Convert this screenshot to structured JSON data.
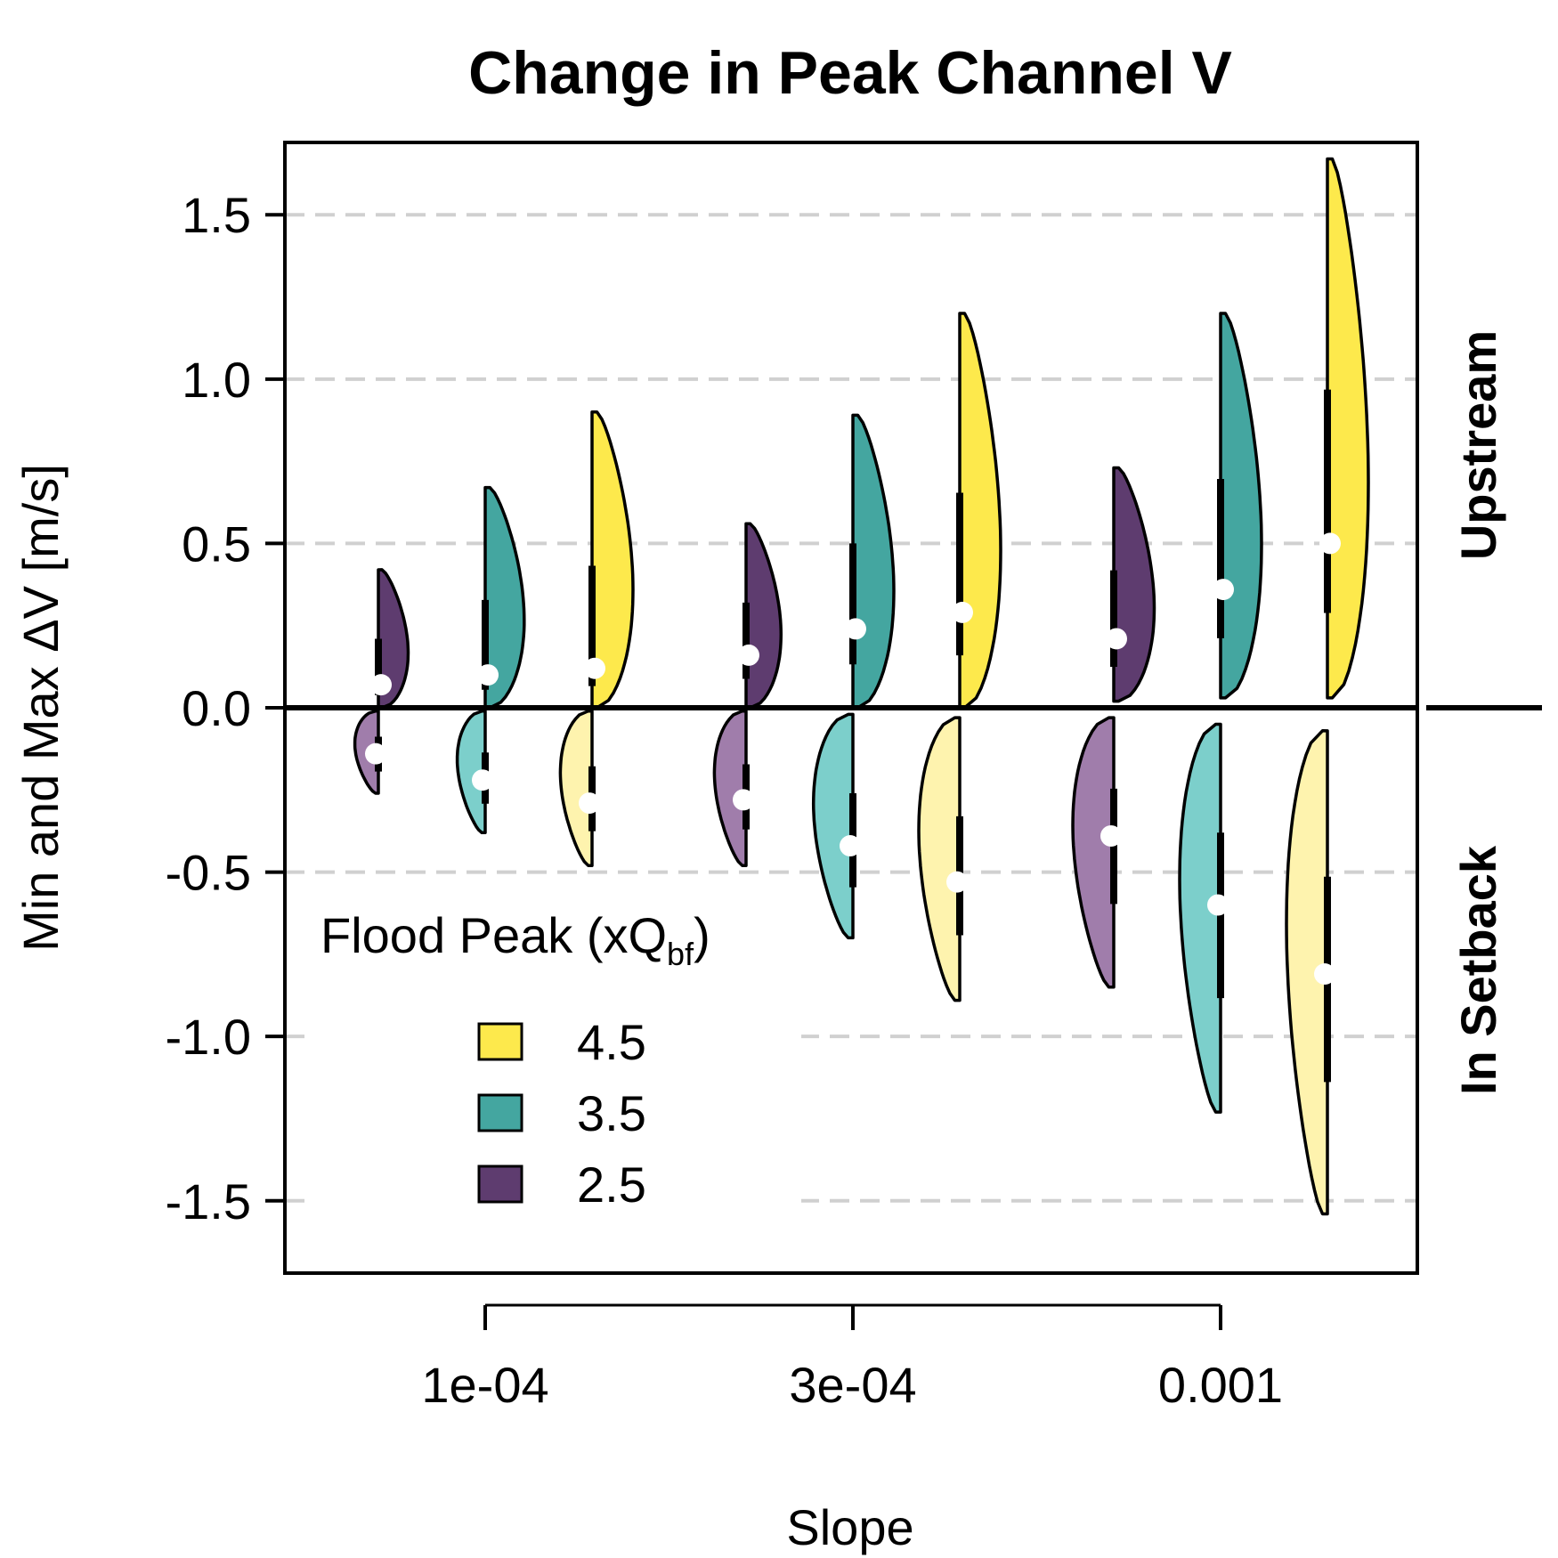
{
  "chart_data": {
    "type": "violin",
    "title": "Change in Peak Channel V",
    "xlabel": "Slope",
    "ylabel": "Min and Max ΔV [m/s]",
    "categories": [
      "1e-04",
      "3e-04",
      "0.001"
    ],
    "ylim": [
      -1.72,
      1.72
    ],
    "yticks": [
      -1.5,
      -1.0,
      -0.5,
      0.0,
      0.5,
      1.0,
      1.5
    ],
    "ytick_labels": [
      "-1.5",
      "-1.0",
      "-0.5",
      "0.0",
      "0.5",
      "1.0",
      "1.5"
    ],
    "grid": "horizontal dashed",
    "side_labels": {
      "upper": "Upstream",
      "lower": "In Setback"
    },
    "legend": {
      "title": "Flood Peak (xQ",
      "title_subscript": "bf",
      "title_close": ")",
      "placement": "bottom-left",
      "entries": [
        {
          "label": "4.5",
          "color": "#fde94c"
        },
        {
          "label": "3.5",
          "color": "#44a6a0"
        },
        {
          "label": "2.5",
          "color": "#5e3c6f"
        }
      ]
    },
    "colors": {
      "2.5": {
        "upstream": "#5e3c6f",
        "setback": "#a07dab"
      },
      "3.5": {
        "upstream": "#44a6a0",
        "setback": "#7ccfcb"
      },
      "4.5": {
        "upstream": "#fde94c",
        "setback": "#fef3ae"
      }
    },
    "series": [
      {
        "flood_peak": "2.5",
        "upstream": [
          {
            "slope": "1e-04",
            "min": 0.0,
            "max": 0.42,
            "median": 0.07
          },
          {
            "slope": "3e-04",
            "min": 0.0,
            "max": 0.56,
            "median": 0.16
          },
          {
            "slope": "0.001",
            "min": 0.02,
            "max": 0.73,
            "median": 0.21
          }
        ],
        "setback": [
          {
            "slope": "1e-04",
            "min": -0.26,
            "max": -0.01,
            "median": -0.14
          },
          {
            "slope": "3e-04",
            "min": -0.48,
            "max": -0.01,
            "median": -0.28
          },
          {
            "slope": "0.001",
            "min": -0.85,
            "max": -0.03,
            "median": -0.39
          }
        ]
      },
      {
        "flood_peak": "3.5",
        "upstream": [
          {
            "slope": "1e-04",
            "min": 0.0,
            "max": 0.67,
            "median": 0.1
          },
          {
            "slope": "3e-04",
            "min": 0.0,
            "max": 0.89,
            "median": 0.24
          },
          {
            "slope": "0.001",
            "min": 0.03,
            "max": 1.2,
            "median": 0.36
          }
        ],
        "setback": [
          {
            "slope": "1e-04",
            "min": -0.38,
            "max": -0.01,
            "median": -0.22
          },
          {
            "slope": "3e-04",
            "min": -0.7,
            "max": -0.02,
            "median": -0.42
          },
          {
            "slope": "0.001",
            "min": -1.23,
            "max": -0.05,
            "median": -0.6
          }
        ]
      },
      {
        "flood_peak": "4.5",
        "upstream": [
          {
            "slope": "1e-04",
            "min": 0.0,
            "max": 0.9,
            "median": 0.12
          },
          {
            "slope": "3e-04",
            "min": 0.0,
            "max": 1.2,
            "median": 0.29
          },
          {
            "slope": "0.001",
            "min": 0.03,
            "max": 1.67,
            "median": 0.5
          }
        ],
        "setback": [
          {
            "slope": "1e-04",
            "min": -0.48,
            "max": -0.01,
            "median": -0.29
          },
          {
            "slope": "3e-04",
            "min": -0.89,
            "max": -0.03,
            "median": -0.53
          },
          {
            "slope": "0.001",
            "min": -1.54,
            "max": -0.07,
            "median": -0.81
          }
        ]
      }
    ]
  }
}
